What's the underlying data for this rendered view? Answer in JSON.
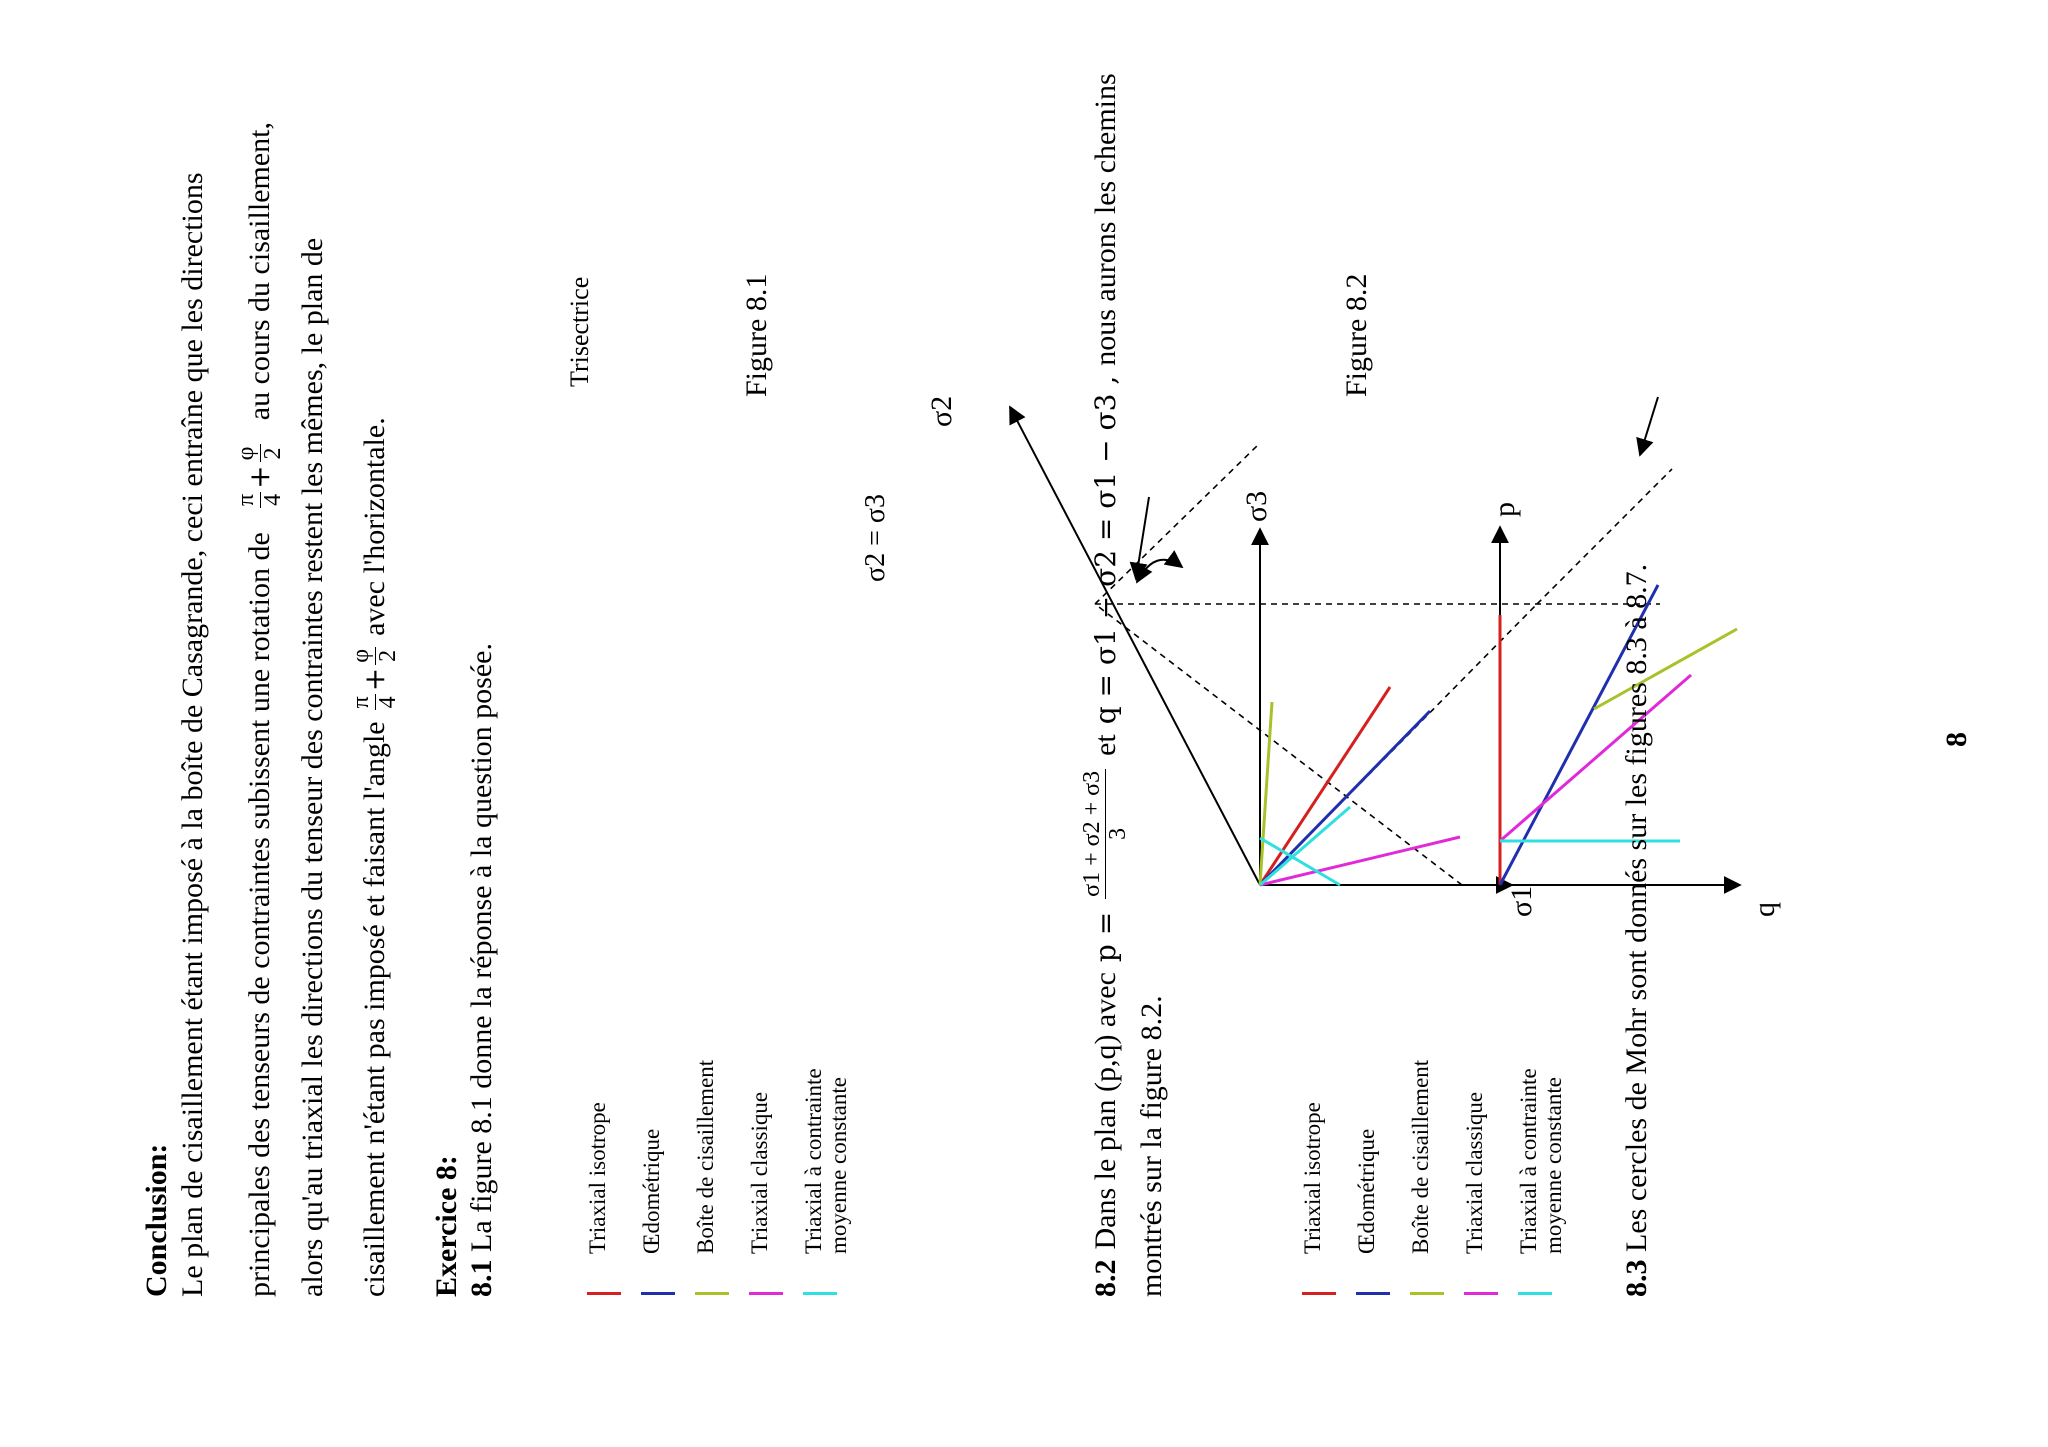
{
  "conclusion": {
    "heading": "Conclusion:",
    "line1": "Le plan de cisaillement étant imposé à la boîte de Casagrande, ceci entraîne que les directions",
    "line2a": "principales des tenseurs de contraintes subissent une rotation de",
    "line2b": "au cours du cisaillement,",
    "line3": "alors qu'au triaxial les directions du tenseur des contraintes restent les mêmes, le plan de",
    "line4a": "cisaillement n'étant pas imposé et faisant l'angle",
    "line4b": "avec l'horizontale.",
    "angle_expr": {
      "t1_num": "π",
      "t1_den": "4",
      "op": "+",
      "t2_num": "φ",
      "t2_den": "2"
    }
  },
  "exercise": {
    "heading": "Exercice 8:",
    "q81_num": "8.1",
    "q81_text": "La figure 8.1 donne la réponse à la question posée.",
    "q82_num": "8.2",
    "q82_text_a": "Dans le plan (p,q) avec",
    "q82_p_eq": "p =",
    "q82_p_num": "σ1 + σ2 + σ3",
    "q82_p_den": "3",
    "q82_and": "et",
    "q82_q_eq": "q = σ1 − σ2 = σ1 − σ3 ,",
    "q82_text_b": "nous aurons les chemins",
    "q82_line2": "montrés sur la figure 8.2.",
    "q83_num": "8.3",
    "q83_text": "Les cercles de Mohr sont donnés sur les figures 8.3 à 8.7."
  },
  "legend": {
    "items": [
      {
        "label": "Triaxial isotrope",
        "color": "#d62020"
      },
      {
        "label": "Œdométrique",
        "color": "#1f2fae"
      },
      {
        "label": "Boîte de cisaillement",
        "color": "#a8c22a"
      },
      {
        "label": "Triaxial classique",
        "color": "#e02ad8"
      },
      {
        "label": "Triaxial à contrainte",
        "label2": "moyenne constante",
        "color": "#2ee0e0"
      }
    ]
  },
  "figure1": {
    "caption": "Figure 8.1",
    "axis_sigma1": "σ1",
    "axis_sigma2": "σ2",
    "axis_sigma3": "σ3",
    "trisectrice": "Trisectrice",
    "equality": "σ2 = σ3"
  },
  "figure2": {
    "caption": "Figure 8.2",
    "axis_p": "p",
    "axis_q": "q"
  },
  "page_number": "8"
}
